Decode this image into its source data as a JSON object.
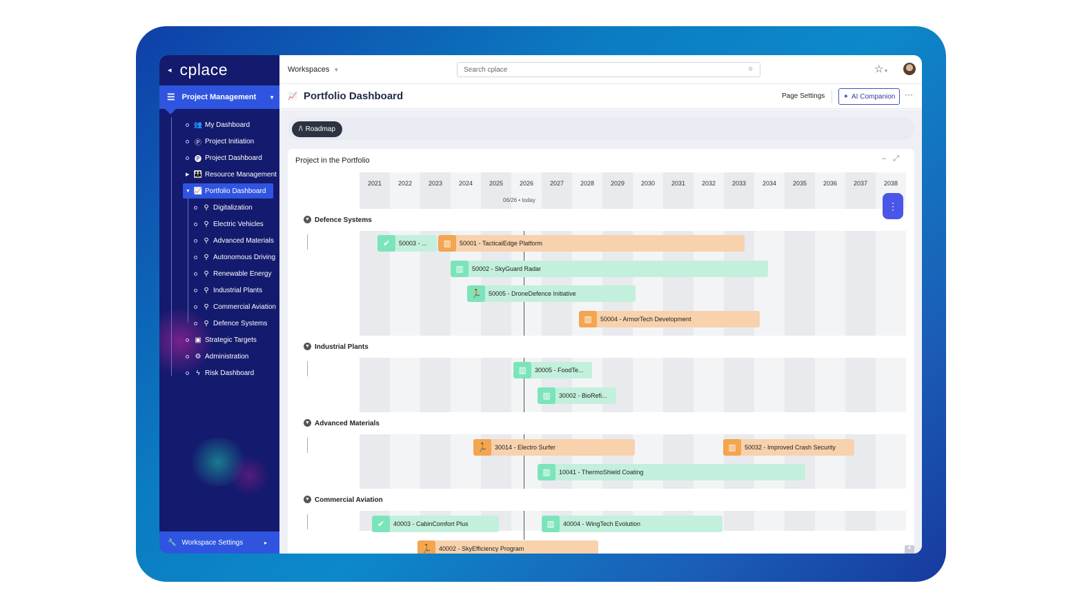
{
  "brand": {
    "logo": "cplace",
    "back_arrow": "◂"
  },
  "sidebar": {
    "workspace": "Project Management",
    "items": [
      {
        "label": "My Dashboard",
        "icon": "users-icon"
      },
      {
        "label": "Project Initiation",
        "icon": "p-circle-icon"
      },
      {
        "label": "Project Dashboard",
        "icon": "p-circle-filled-icon"
      },
      {
        "label": "Resource Management",
        "icon": "group-icon"
      },
      {
        "label": "Portfolio Dashboard",
        "icon": "chart-line-icon"
      },
      {
        "label": "Digitalization",
        "icon": "pin-icon"
      },
      {
        "label": "Electric Vehicles",
        "icon": "pin-icon"
      },
      {
        "label": "Advanced Materials",
        "icon": "pin-icon"
      },
      {
        "label": "Autonomous Driving",
        "icon": "pin-icon"
      },
      {
        "label": "Renewable Energy",
        "icon": "pin-icon"
      },
      {
        "label": "Industrial Plants",
        "icon": "pin-icon"
      },
      {
        "label": "Commercial Aviation",
        "icon": "pin-icon"
      },
      {
        "label": "Defence Systems",
        "icon": "pin-icon"
      },
      {
        "label": "Strategic Targets",
        "icon": "target-icon"
      },
      {
        "label": "Administration",
        "icon": "gear-group-icon"
      },
      {
        "label": "Risk Dashboard",
        "icon": "risk-icon"
      }
    ],
    "footer": "Workspace Settings"
  },
  "topbar": {
    "workspaces": "Workspaces",
    "search_placeholder": "Search cplace"
  },
  "page": {
    "title": "Portfolio Dashboard",
    "settings": "Page Settings",
    "ai": "AI Companion",
    "more": "···"
  },
  "tabs": {
    "roadmap": "Roadmap"
  },
  "widget": {
    "title": "Project in the Portfolio",
    "today_date": "06/26",
    "today_label": "today"
  },
  "years": [
    "2021",
    "2022",
    "2023",
    "2024",
    "2025",
    "2026",
    "2027",
    "2028",
    "2029",
    "2030",
    "2031",
    "2032",
    "2033",
    "2034",
    "2035",
    "2036",
    "2037",
    "2038"
  ],
  "groups": [
    {
      "name": "Defence Systems",
      "bars": [
        {
          "label": "50003 - ...",
          "color": "green",
          "icon": "check-icon"
        },
        {
          "label": "50001 - TacticalEdge Platform",
          "color": "orange",
          "icon": "map-icon"
        },
        {
          "label": "50002 - SkyGuard Radar",
          "color": "green",
          "icon": "map-icon"
        },
        {
          "label": "50005 - DroneDefence Initiative",
          "color": "green",
          "icon": "runner-icon"
        },
        {
          "label": "50004 - ArmorTech Development",
          "color": "orange",
          "icon": "map-icon"
        }
      ]
    },
    {
      "name": "Industrial Plants",
      "bars": [
        {
          "label": "30005 - FoodTe...",
          "color": "green",
          "icon": "map-icon"
        },
        {
          "label": "30002 - BioRefi...",
          "color": "green",
          "icon": "map-icon"
        }
      ]
    },
    {
      "name": "Advanced Materials",
      "bars": [
        {
          "label": "30014 - Electro Surfer",
          "color": "orange",
          "icon": "runner-icon"
        },
        {
          "label": "50032 - Improved Crash Security",
          "color": "orange",
          "icon": "map-icon"
        },
        {
          "label": "10041 - ThermoShield Coating",
          "color": "green",
          "icon": "map-icon"
        }
      ]
    },
    {
      "name": "Commercial Aviation",
      "bars": [
        {
          "label": "40003 - CabinComfort Plus",
          "color": "green",
          "icon": "check-icon"
        },
        {
          "label": "40004 - WingTech Evolution",
          "color": "green",
          "icon": "map-icon"
        },
        {
          "label": "40002 - SkyEfficiency Program",
          "color": "orange",
          "icon": "runner-icon"
        }
      ]
    }
  ],
  "colors": {
    "sidebar": "#141a6e",
    "accent": "#2f55e0",
    "orange": "#f3a54f",
    "green": "#7ce4bb"
  }
}
